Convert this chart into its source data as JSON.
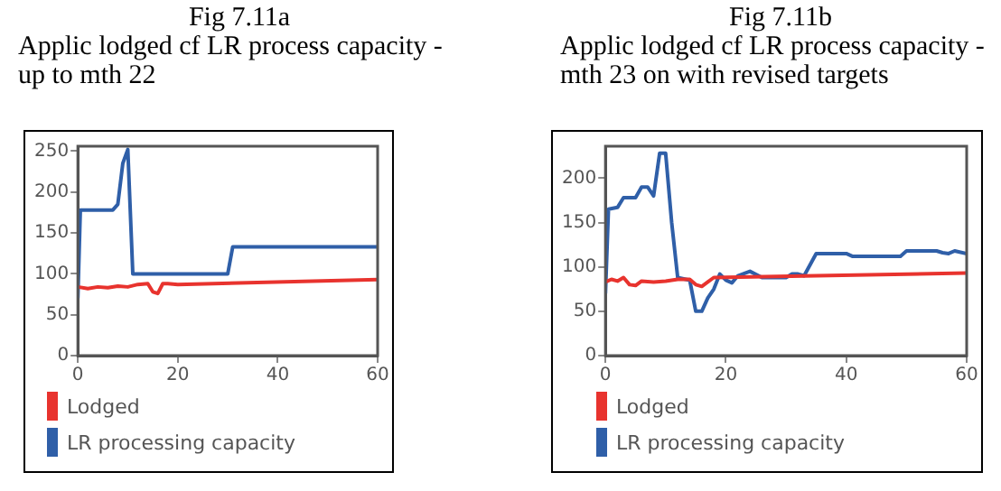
{
  "chart_data": [
    {
      "type": "line",
      "title": "Fig 7.11a",
      "subtitle": "Applic lodged cf LR process capacity -up to mth 22",
      "xlim": [
        0,
        60
      ],
      "xticks": [
        0,
        20,
        40,
        60
      ],
      "ylim": [
        0,
        256
      ],
      "yticks": [
        0,
        50,
        100,
        150,
        200,
        250
      ],
      "legend": "bottom",
      "marker": "none",
      "series": [
        {
          "name": "Lodged",
          "color": "#e8332e",
          "x": [
            0,
            2,
            4,
            6,
            8,
            10,
            12,
            14,
            15,
            16,
            17,
            18,
            20,
            60
          ],
          "values": [
            84,
            82,
            84,
            83,
            85,
            84,
            87,
            88,
            78,
            76,
            88,
            88,
            87,
            93
          ]
        },
        {
          "name": "LR processing capacity",
          "color": "#2f5fa8",
          "x": [
            0,
            0.5,
            7,
            8,
            9,
            10,
            11,
            30,
            31,
            60
          ],
          "values": [
            70,
            178,
            178,
            185,
            235,
            252,
            100,
            100,
            133,
            133
          ]
        }
      ]
    },
    {
      "type": "line",
      "title": "Fig 7.11b",
      "subtitle": "Applic lodged cf LR process capacity - mth 23 on with revised targets",
      "xlim": [
        0,
        60
      ],
      "xticks": [
        0,
        20,
        40,
        60
      ],
      "ylim": [
        0,
        236
      ],
      "yticks": [
        0,
        50,
        100,
        150,
        200
      ],
      "legend": "bottom",
      "marker": "none",
      "series": [
        {
          "name": "Lodged",
          "color": "#e8332e",
          "x": [
            0,
            1,
            2,
            3,
            4,
            5,
            6,
            8,
            10,
            12,
            14,
            15,
            16,
            17,
            18,
            60
          ],
          "values": [
            83,
            86,
            84,
            88,
            80,
            79,
            84,
            83,
            84,
            86,
            86,
            80,
            78,
            83,
            88,
            93
          ]
        },
        {
          "name": "LR processing capacity",
          "color": "#2f5fa8",
          "x": [
            0,
            0.5,
            2,
            3,
            5,
            6,
            7,
            8,
            9,
            10,
            11,
            12,
            14,
            15,
            16,
            17,
            18,
            19,
            20,
            21,
            22,
            24,
            26,
            30,
            31,
            32,
            33,
            35,
            40,
            41,
            49,
            50,
            55,
            56,
            57,
            58,
            60
          ],
          "values": [
            70,
            165,
            167,
            178,
            178,
            190,
            190,
            180,
            228,
            228,
            150,
            88,
            85,
            50,
            50,
            65,
            75,
            92,
            85,
            82,
            90,
            95,
            88,
            88,
            92,
            92,
            90,
            115,
            115,
            112,
            112,
            118,
            118,
            116,
            115,
            118,
            115
          ]
        }
      ]
    }
  ]
}
